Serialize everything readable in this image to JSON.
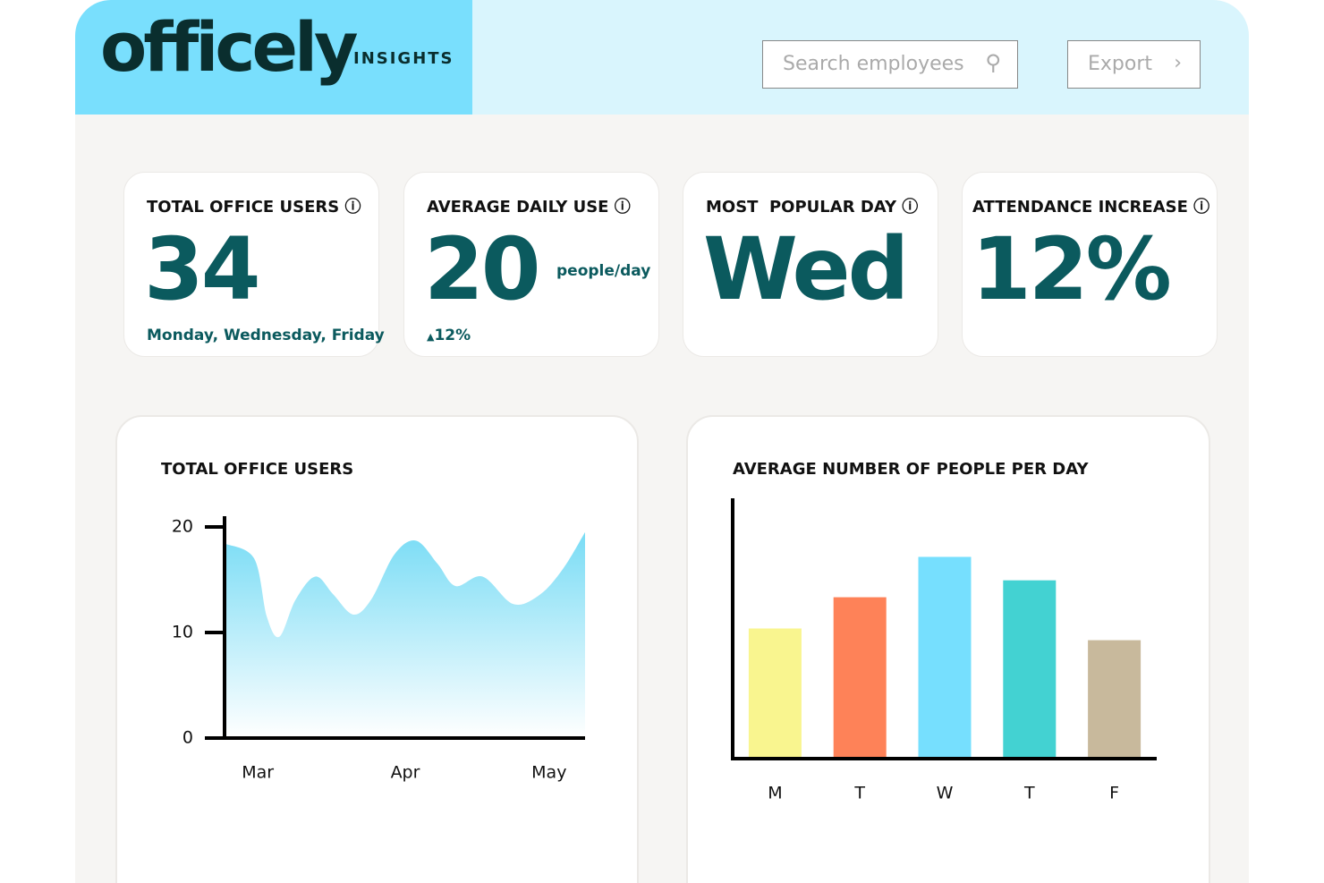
{
  "header": {
    "logo": "officely",
    "section": "INSIGHTS",
    "search_placeholder": "Search employees",
    "export": "Export"
  },
  "cards": [
    {
      "title": "TOTAL OFFICE USERS",
      "value": "34",
      "note": "Monday, Wednesday, Friday"
    },
    {
      "title": "AVERAGE DAILY USE",
      "value": "20",
      "unit": "people/day",
      "note": "12%"
    },
    {
      "title": "MOST  POPULAR DAY",
      "value": "Wed"
    },
    {
      "title": "ATTENDANCE INCREASE",
      "value": "12%"
    }
  ],
  "chart_data": [
    {
      "type": "area",
      "title": "TOTAL OFFICE USERS",
      "color": "#79dcf5",
      "x": [
        0,
        8,
        11.5,
        15,
        19.5,
        25,
        30,
        35.5,
        40.5,
        47,
        53,
        59,
        64,
        71.5,
        80,
        87.5,
        94,
        100
      ],
      "values": [
        18.4,
        17.0,
        11.5,
        9.6,
        13.1,
        15.3,
        13.6,
        11.7,
        13.1,
        17.4,
        18.7,
        16.5,
        14.4,
        15.3,
        12.7,
        13.6,
        16.1,
        19.5
      ],
      "xlim": [
        0,
        100
      ],
      "xticks": [
        {
          "value": 9,
          "label": "Mar"
        },
        {
          "value": 50,
          "label": "Apr"
        },
        {
          "value": 90,
          "label": "May"
        }
      ],
      "ylim": [
        0,
        20
      ],
      "yticks": [
        0,
        10,
        20
      ]
    },
    {
      "type": "bar",
      "title": "AVERAGE NUMBER OF PEOPLE PER DAY",
      "categories": [
        "M",
        "T",
        "W",
        "T",
        "F"
      ],
      "values": [
        10.0,
        12.4,
        15.5,
        13.7,
        9.1
      ],
      "colors": [
        "#f9f58f",
        "#fe8258",
        "#76dffe",
        "#43d2d2",
        "#c8b99c"
      ],
      "ylim": [
        0,
        20
      ]
    }
  ]
}
